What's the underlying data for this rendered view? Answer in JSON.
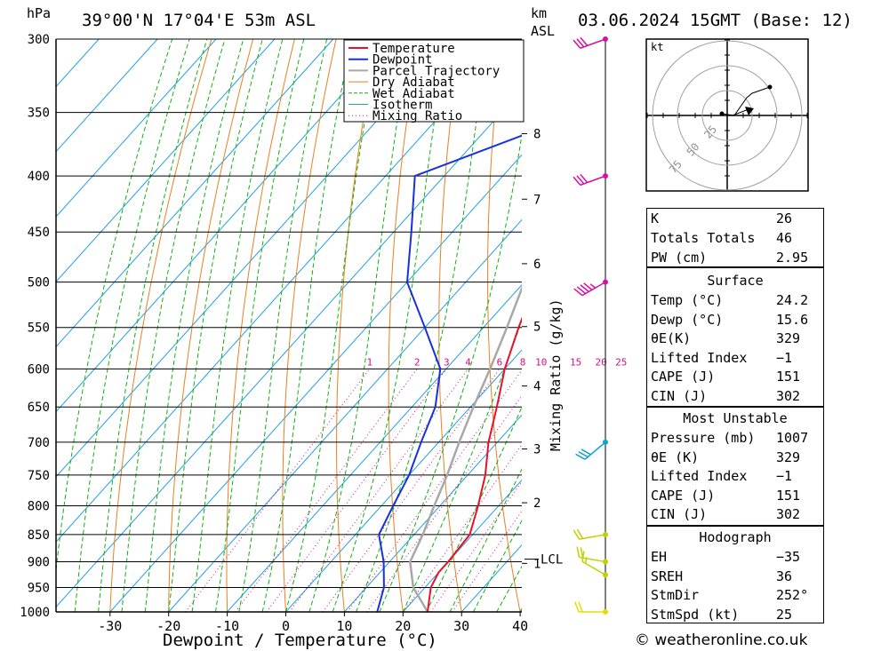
{
  "header": {
    "pressure_unit": "hPa",
    "location": "39°00'N  17°04'E  53m  ASL",
    "km_label": "km",
    "asl_label": "ASL",
    "datetime": "03.06.2024  15GMT  (Base: 12)"
  },
  "chart_data": {
    "type": "skew-t",
    "xlabel": "Dewpoint / Temperature (°C)",
    "ylabel": "hPa",
    "mixing_ratio_label": "Mixing Ratio (g/kg)",
    "x_ticks": [
      -30,
      -20,
      -10,
      0,
      10,
      20,
      30,
      40
    ],
    "p_ticks": [
      300,
      350,
      400,
      450,
      500,
      550,
      600,
      650,
      700,
      750,
      800,
      850,
      900,
      950,
      1000
    ],
    "km_ticks": [
      {
        "label": "8",
        "p": 366
      },
      {
        "label": "7",
        "p": 420
      },
      {
        "label": "6",
        "p": 481
      },
      {
        "label": "5",
        "p": 549
      },
      {
        "label": "4",
        "p": 622
      },
      {
        "label": "3",
        "p": 710
      },
      {
        "label": "2",
        "p": 795
      },
      {
        "label": "1",
        "p": 903
      }
    ],
    "lcl": {
      "label": "LCL",
      "p": 895
    },
    "mixing_ratios": [
      1,
      2,
      3,
      4,
      6,
      8,
      10,
      15,
      20,
      25
    ],
    "legend": [
      {
        "name": "Temperature",
        "color": "#e8102a"
      },
      {
        "name": "Dewpoint",
        "color": "#1632d8"
      },
      {
        "name": "Parcel Trajectory",
        "color": "#a8a8a8"
      },
      {
        "name": "Dry Adiabat",
        "color": "#e88020"
      },
      {
        "name": "Wet Adiabat",
        "color": "#10b010"
      },
      {
        "name": "Isotherm",
        "color": "#20a0e0"
      },
      {
        "name": "Mixing Ratio",
        "color": "#d0108a"
      }
    ],
    "temperature": [
      {
        "p": 1000,
        "t": 24.2
      },
      {
        "p": 950,
        "t": 21
      },
      {
        "p": 920,
        "t": 20
      },
      {
        "p": 900,
        "t": 20
      },
      {
        "p": 850,
        "t": 19.5
      },
      {
        "p": 800,
        "t": 16.5
      },
      {
        "p": 750,
        "t": 13
      },
      {
        "p": 700,
        "t": 8.5
      },
      {
        "p": 650,
        "t": 4.5
      },
      {
        "p": 600,
        "t": 0
      },
      {
        "p": 550,
        "t": -4
      },
      {
        "p": 500,
        "t": -8
      },
      {
        "p": 450,
        "t": -13
      },
      {
        "p": 400,
        "t": -19
      },
      {
        "p": 350,
        "t": -26
      },
      {
        "p": 300,
        "t": -35
      }
    ],
    "dewpoint": [
      {
        "p": 1000,
        "t": 15.6
      },
      {
        "p": 950,
        "t": 13
      },
      {
        "p": 900,
        "t": 9
      },
      {
        "p": 850,
        "t": 4
      },
      {
        "p": 800,
        "t": 2
      },
      {
        "p": 750,
        "t": 0
      },
      {
        "p": 700,
        "t": -3
      },
      {
        "p": 650,
        "t": -6
      },
      {
        "p": 600,
        "t": -11
      },
      {
        "p": 550,
        "t": -20
      },
      {
        "p": 500,
        "t": -30
      },
      {
        "p": 450,
        "t": -37
      },
      {
        "p": 400,
        "t": -45
      },
      {
        "p": 350,
        "t": -26
      },
      {
        "p": 300,
        "t": -36
      }
    ],
    "parcel": [
      {
        "p": 1000,
        "t": 24.2
      },
      {
        "p": 950,
        "t": 18
      },
      {
        "p": 900,
        "t": 13.5
      },
      {
        "p": 850,
        "t": 11.5
      },
      {
        "p": 800,
        "t": 9
      },
      {
        "p": 750,
        "t": 6.5
      },
      {
        "p": 700,
        "t": 3.5
      },
      {
        "p": 650,
        "t": 0.5
      },
      {
        "p": 600,
        "t": -2.5
      },
      {
        "p": 550,
        "t": -6
      },
      {
        "p": 500,
        "t": -10
      },
      {
        "p": 450,
        "t": -15
      },
      {
        "p": 400,
        "t": -21
      },
      {
        "p": 350,
        "t": -28
      },
      {
        "p": 300,
        "t": -36
      }
    ],
    "winds": [
      {
        "p": 300,
        "color": "#d810a0",
        "dir": 250,
        "speed": 30
      },
      {
        "p": 400,
        "color": "#d810a0",
        "dir": 250,
        "speed": 30
      },
      {
        "p": 500,
        "color": "#d810a0",
        "dir": 240,
        "speed": 45
      },
      {
        "p": 700,
        "color": "#10a0d0",
        "dir": 230,
        "speed": 30
      },
      {
        "p": 850,
        "color": "#c0d000",
        "dir": 260,
        "speed": 20
      },
      {
        "p": 900,
        "color": "#c0d000",
        "dir": 280,
        "speed": 20
      },
      {
        "p": 925,
        "color": "#c0d000",
        "dir": 300,
        "speed": 15
      },
      {
        "p": 1000,
        "color": "#e0e000",
        "dir": 270,
        "speed": 20
      }
    ]
  },
  "hodograph": {
    "unit": "kt",
    "rings": [
      "25",
      "50",
      "75"
    ]
  },
  "indices": {
    "rows": [
      {
        "k": "K",
        "v": "26"
      },
      {
        "k": "Totals Totals",
        "v": "46"
      },
      {
        "k": "PW (cm)",
        "v": "2.95"
      }
    ]
  },
  "surface": {
    "title": "Surface",
    "rows": [
      {
        "k": "Temp (°C)",
        "v": "24.2"
      },
      {
        "k": "Dewp (°C)",
        "v": "15.6"
      },
      {
        "k": "θE(K)",
        "v": "329"
      },
      {
        "k": "Lifted Index",
        "v": "−1"
      },
      {
        "k": "CAPE (J)",
        "v": "151"
      },
      {
        "k": "CIN (J)",
        "v": "302"
      }
    ]
  },
  "most_unstable": {
    "title": "Most Unstable",
    "rows": [
      {
        "k": "Pressure (mb)",
        "v": "1007"
      },
      {
        "k": "θE (K)",
        "v": "329"
      },
      {
        "k": "Lifted Index",
        "v": "−1"
      },
      {
        "k": "CAPE (J)",
        "v": "151"
      },
      {
        "k": "CIN (J)",
        "v": "302"
      }
    ]
  },
  "hodograph_params": {
    "title": "Hodograph",
    "rows": [
      {
        "k": "EH",
        "v": "−35"
      },
      {
        "k": "SREH",
        "v": "36"
      },
      {
        "k": "StmDir",
        "v": "252°"
      },
      {
        "k": "StmSpd (kt)",
        "v": "25"
      }
    ]
  },
  "footer": {
    "copyright": "© weatheronline.co.uk"
  }
}
